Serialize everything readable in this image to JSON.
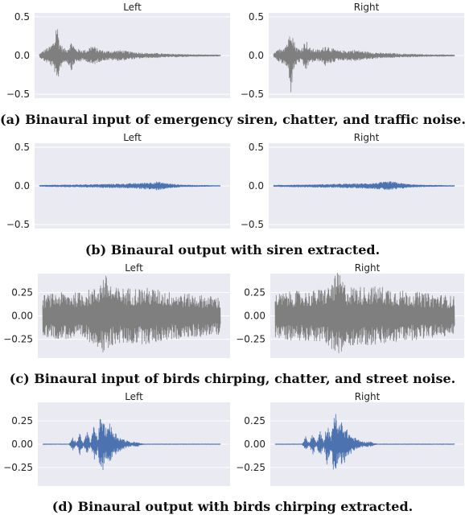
{
  "chart_data": [
    {
      "type": "line",
      "caption": "(a) Binaural input of emergency siren, chatter, and traffic noise.",
      "panels": [
        {
          "title": "Left",
          "yticks": [
            "0.5",
            "0.0",
            "−0.5"
          ],
          "ylim": [
            -0.55,
            0.55
          ]
        },
        {
          "title": "Right",
          "yticks": [
            "0.5",
            "0.0",
            "−0.5"
          ],
          "ylim": [
            -0.55,
            0.55
          ]
        }
      ],
      "series_color": "#7f7f7f",
      "x": [
        0.0,
        0.03,
        0.06,
        0.085,
        0.095,
        0.11,
        0.13,
        0.15,
        0.18,
        0.195,
        0.22,
        0.26,
        0.29,
        0.32,
        0.36,
        0.4,
        0.45,
        0.5,
        0.55,
        0.6,
        0.65,
        0.7,
        0.75,
        0.8,
        0.85,
        0.9,
        0.95,
        1.0
      ],
      "envelope": [
        0.02,
        0.08,
        0.12,
        0.22,
        0.5,
        0.2,
        0.1,
        0.08,
        0.2,
        0.1,
        0.08,
        0.07,
        0.14,
        0.09,
        0.06,
        0.06,
        0.07,
        0.05,
        0.04,
        0.03,
        0.03,
        0.02,
        0.02,
        0.015,
        0.012,
        0.01,
        0.01,
        0.008
      ]
    },
    {
      "type": "line",
      "caption": "(b) Binaural output with siren extracted.",
      "panels": [
        {
          "title": "Left",
          "yticks": [
            "0.5",
            "0.0",
            "−0.5"
          ],
          "ylim": [
            -0.55,
            0.55
          ]
        },
        {
          "title": "Right",
          "yticks": [
            "0.5",
            "0.0",
            "−0.5"
          ],
          "ylim": [
            -0.55,
            0.55
          ]
        }
      ],
      "series_color": "#4c72b0",
      "x": [
        0.0,
        0.1,
        0.2,
        0.3,
        0.4,
        0.5,
        0.55,
        0.6,
        0.65,
        0.7,
        0.75,
        0.8,
        0.9,
        1.0
      ],
      "envelope": [
        0.008,
        0.012,
        0.015,
        0.02,
        0.025,
        0.03,
        0.035,
        0.045,
        0.055,
        0.035,
        0.02,
        0.012,
        0.008,
        0.005
      ]
    },
    {
      "type": "line",
      "caption": "(c) Binaural input of birds chirping, chatter, and street noise.",
      "panels": [
        {
          "title": "Left",
          "yticks": [
            "0.25",
            "0.00",
            "−0.25"
          ],
          "ylim": [
            -0.45,
            0.45
          ]
        },
        {
          "title": "Right",
          "yticks": [
            "0.25",
            "0.00",
            "−0.25"
          ],
          "ylim": [
            -0.45,
            0.45
          ]
        }
      ],
      "series_color": "#7f7f7f",
      "x": [
        0.0,
        0.1,
        0.2,
        0.3,
        0.35,
        0.4,
        0.5,
        0.6,
        0.7,
        0.8,
        0.9,
        1.0
      ],
      "envelope": [
        0.22,
        0.25,
        0.25,
        0.3,
        0.45,
        0.3,
        0.3,
        0.3,
        0.26,
        0.24,
        0.22,
        0.2
      ]
    },
    {
      "type": "line",
      "caption": "(d) Binaural output with birds chirping extracted.",
      "panels": [
        {
          "title": "Left",
          "yticks": [
            "0.25",
            "0.00",
            "−0.25"
          ],
          "ylim": [
            -0.45,
            0.45
          ]
        },
        {
          "title": "Right",
          "yticks": [
            "0.25",
            "0.00",
            "−0.25"
          ],
          "ylim": [
            -0.45,
            0.45
          ]
        }
      ],
      "series_color": "#4c72b0",
      "x": [
        0.0,
        0.15,
        0.17,
        0.19,
        0.21,
        0.23,
        0.25,
        0.27,
        0.29,
        0.31,
        0.33,
        0.35,
        0.37,
        0.4,
        0.43,
        0.47,
        0.5,
        0.53,
        0.55,
        0.57,
        1.0
      ],
      "envelope": [
        0.003,
        0.003,
        0.08,
        0.01,
        0.12,
        0.01,
        0.14,
        0.02,
        0.22,
        0.06,
        0.4,
        0.18,
        0.25,
        0.15,
        0.08,
        0.04,
        0.02,
        0.03,
        0.01,
        0.003,
        0.003
      ]
    }
  ]
}
